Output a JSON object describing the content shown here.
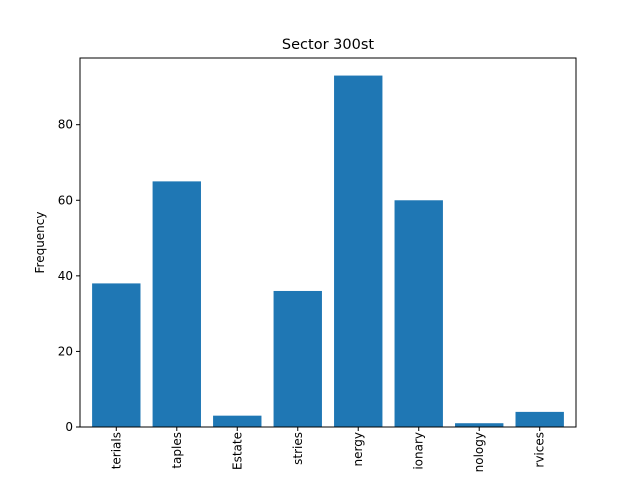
{
  "chart_data": {
    "type": "bar",
    "title": "Sector 300st",
    "xlabel": "",
    "ylabel": "Frequency",
    "categories_visible_text": [
      "terials",
      "taples",
      "Estate",
      "stries",
      "nergy",
      "ionary",
      "nology",
      "rvices"
    ],
    "values": [
      38,
      65,
      3,
      36,
      93,
      60,
      1,
      4
    ],
    "ylim": [
      0,
      97.65
    ],
    "yticks": [
      0,
      20,
      40,
      60,
      80
    ],
    "bar_color": "#1f77b4",
    "grid": false,
    "legend": "none"
  }
}
